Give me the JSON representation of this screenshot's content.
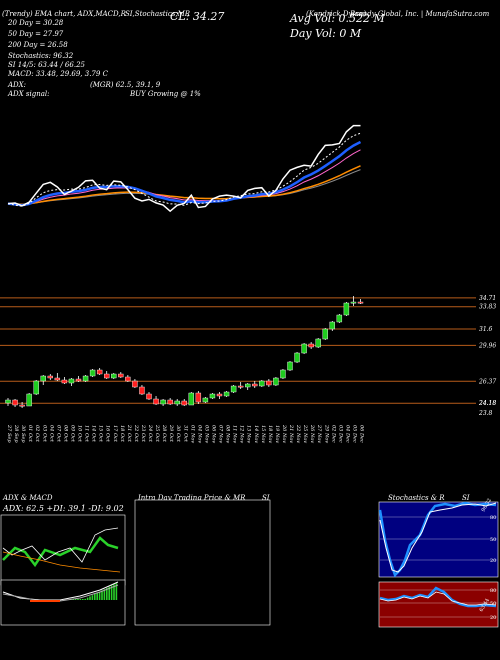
{
  "header": {
    "line1": "(Trendy) EMA chart, ADX,MACD,R",
    "line1_mid": "SI,Stochastics,MR",
    "line1_ticker": "(Kendrick Dylan)",
    "line1_company": "Brandy Global, Inc. | MunafaSutra.com",
    "close_label": "CL: 34.27",
    "avg_vol_label": "Avg Vol: 0.522  M",
    "day_vol_label": "Day Vol: 0   M",
    "ma20": "20  Day = 30.28",
    "ma50": "50  Day = 27.97",
    "ma200": "200  Day = 26.58",
    "stoch": "Stochastics: 96.32",
    "rsi": "SI 14/5: 63.44 / 66.25",
    "macd": "MACD: 33.48, 29.69, 3.79 C",
    "adx": "ADX:",
    "adx_val": "(MGR) 62.5,  39.1,  9",
    "adx_signal": "ADX  signal:",
    "buy_signal": "BUY Growing @ 1%"
  },
  "colors": {
    "candle_up": "#1fcc1f",
    "candle_down": "#ff2020",
    "ema_fast": "#ffffff",
    "ema_blue": "#1e5fff",
    "ema_orange": "#ff8c00",
    "grid_line": "#b85c1a",
    "stoch_bg": "#000080",
    "rsi_bg": "#8b0000"
  },
  "price_levels": [
    "34.71",
    "33.83",
    "31.6",
    "29.96",
    "26.37",
    "24.18",
    "24.18",
    "23.8"
  ],
  "x_dates": [
    "27 Sep",
    "28 Sep",
    "30 Sep",
    "01 Oct",
    "02 Oct",
    "03 Oct",
    "04 Oct",
    "07 Oct",
    "08 Oct",
    "09 Oct",
    "10 Oct",
    "11 Oct",
    "14 Oct",
    "15 Oct",
    "16 Oct",
    "17 Oct",
    "18 Oct",
    "21 Oct",
    "22 Oct",
    "23 Oct",
    "24 Oct",
    "25 Oct",
    "28 Oct",
    "29 Oct",
    "30 Oct",
    "31 Oct",
    "01 Nov",
    "04 Nov",
    "05 Nov",
    "06 Nov",
    "07 Nov",
    "08 Nov",
    "11 Nov",
    "12 Nov",
    "13 Nov",
    "14 Nov",
    "15 Nov",
    "18 Nov",
    "19 Nov",
    "20 Nov",
    "21 Nov",
    "22 Nov",
    "25 Nov",
    "26 Nov",
    "27 Nov",
    "29 Nov",
    "02 Dec",
    "03 Dec",
    "04 Dec",
    "05 Dec",
    "06 Dec"
  ],
  "panels": {
    "adx_title": "ADX  & MACD",
    "adx_values": "ADX: 62.5 +DI: 39.1 -DI: 9.02",
    "intraday_title": "Intra  Day Trading Price  & MR",
    "intraday_si": "SI",
    "stoch_title": "Stochastics & R",
    "stoch_si": "SI",
    "stoch_levels": [
      "80",
      "50",
      "20"
    ],
    "rsi_levels": [
      "80",
      "50",
      "20"
    ],
    "stoch_last": "96.32",
    "rsi_last": "63.44"
  },
  "chart_data": {
    "type": "candlestick",
    "candles": [
      [
        24.2,
        24.7,
        23.9,
        24.5
      ],
      [
        24.5,
        24.6,
        23.8,
        24.0
      ],
      [
        24.0,
        24.3,
        23.7,
        23.9
      ],
      [
        23.9,
        25.2,
        23.9,
        25.1
      ],
      [
        25.1,
        26.5,
        25.0,
        26.4
      ],
      [
        26.4,
        27.0,
        26.0,
        26.9
      ],
      [
        26.9,
        27.1,
        26.5,
        26.7
      ],
      [
        26.7,
        27.2,
        26.4,
        26.5
      ],
      [
        26.5,
        26.8,
        26.1,
        26.2
      ],
      [
        26.2,
        26.7,
        25.9,
        26.6
      ],
      [
        26.6,
        26.9,
        26.3,
        26.4
      ],
      [
        26.4,
        27.0,
        26.3,
        26.9
      ],
      [
        26.9,
        27.6,
        26.8,
        27.5
      ],
      [
        27.5,
        27.7,
        27.0,
        27.1
      ],
      [
        27.1,
        27.4,
        26.6,
        26.7
      ],
      [
        26.7,
        27.2,
        26.6,
        27.1
      ],
      [
        27.1,
        27.3,
        26.7,
        26.8
      ],
      [
        26.8,
        27.0,
        26.3,
        26.4
      ],
      [
        26.4,
        26.6,
        25.7,
        25.8
      ],
      [
        25.8,
        26.0,
        25.0,
        25.1
      ],
      [
        25.1,
        25.3,
        24.5,
        24.6
      ],
      [
        24.6,
        24.9,
        24.0,
        24.1
      ],
      [
        24.1,
        24.6,
        23.9,
        24.5
      ],
      [
        24.5,
        24.7,
        24.0,
        24.1
      ],
      [
        24.1,
        24.6,
        23.9,
        24.4
      ],
      [
        24.4,
        24.6,
        23.9,
        24.0
      ],
      [
        24.0,
        25.3,
        24.0,
        25.2
      ],
      [
        25.2,
        25.4,
        24.1,
        24.3
      ],
      [
        24.3,
        24.8,
        24.2,
        24.7
      ],
      [
        24.7,
        25.2,
        24.6,
        25.1
      ],
      [
        25.1,
        25.3,
        24.6,
        24.9
      ],
      [
        24.9,
        25.4,
        24.8,
        25.3
      ],
      [
        25.3,
        26.0,
        25.2,
        25.9
      ],
      [
        25.9,
        26.3,
        25.6,
        25.8
      ],
      [
        25.8,
        26.2,
        25.5,
        26.1
      ],
      [
        26.1,
        26.4,
        25.7,
        25.9
      ],
      [
        25.9,
        26.5,
        25.8,
        26.4
      ],
      [
        26.4,
        26.6,
        25.8,
        26.0
      ],
      [
        26.0,
        26.8,
        25.9,
        26.7
      ],
      [
        26.7,
        27.6,
        26.6,
        27.5
      ],
      [
        27.5,
        28.4,
        27.4,
        28.3
      ],
      [
        28.3,
        29.3,
        28.2,
        29.2
      ],
      [
        29.2,
        30.2,
        29.1,
        30.1
      ],
      [
        30.1,
        30.3,
        29.6,
        29.8
      ],
      [
        29.8,
        30.7,
        29.7,
        30.6
      ],
      [
        30.6,
        31.7,
        30.5,
        31.6
      ],
      [
        31.6,
        32.4,
        31.4,
        32.3
      ],
      [
        32.3,
        33.1,
        32.2,
        33.0
      ],
      [
        33.0,
        34.3,
        32.9,
        34.2
      ],
      [
        34.2,
        34.9,
        33.9,
        34.3
      ],
      [
        34.3,
        34.6,
        34.1,
        34.27
      ]
    ],
    "ylim": [
      23.0,
      35.5
    ]
  }
}
